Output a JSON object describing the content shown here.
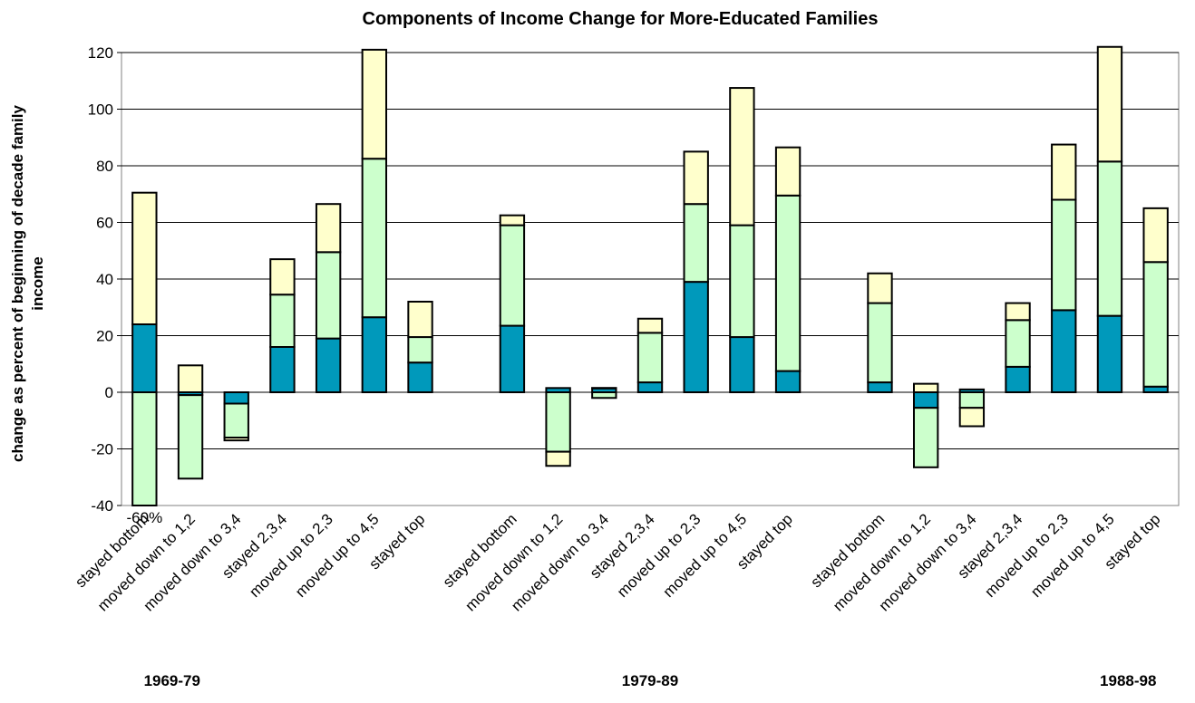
{
  "chart_data": {
    "type": "bar",
    "stacked": true,
    "title": "Components of Income Change for More-Educated Families",
    "ylabel": "change as percent of beginning of decade family income",
    "ylabel_lines": [
      "change as percent of beginning of decade family",
      "income"
    ],
    "xlabel": "",
    "ylim": [
      -40,
      120
    ],
    "yticks": [
      -40,
      -20,
      0,
      20,
      40,
      60,
      80,
      100,
      120
    ],
    "grid": true,
    "legend": "none",
    "colors": {
      "series1": "#0099BB",
      "series2": "#CCFFCC",
      "series3": "#FFFFCC",
      "edge": "#000000",
      "grid": "#000000",
      "axis": "#808080"
    },
    "groups": [
      {
        "label": "1969-79",
        "categories": [
          "stayed bottom",
          "moved down to 1,2",
          "moved down to 3,4",
          "stayed 2,3,4",
          "moved up to 2,3",
          "moved up to 4,5",
          "stayed top"
        ],
        "stacks": [
          [
            24,
            -60,
            46.5
          ],
          [
            -1,
            -29.5,
            9.5
          ],
          [
            -4,
            -12,
            -1
          ],
          [
            16,
            18.5,
            12.5
          ],
          [
            19,
            30.5,
            17
          ],
          [
            26.5,
            56,
            38.5
          ],
          [
            10.5,
            9,
            12.5
          ]
        ]
      },
      {
        "label": "1979-89",
        "categories": [
          "stayed bottom",
          "moved down to 1,2",
          "moved down to 3,4",
          "stayed 2,3,4",
          "moved up to 2,3",
          "moved up to 4,5",
          "stayed top"
        ],
        "stacks": [
          [
            23.5,
            35.5,
            3.5
          ],
          [
            1.5,
            -21,
            -5
          ],
          [
            1.5,
            -2,
            0
          ],
          [
            3.5,
            17.5,
            5
          ],
          [
            39,
            27.5,
            18.5
          ],
          [
            19.5,
            39.5,
            48.5
          ],
          [
            7.5,
            62,
            17
          ]
        ]
      },
      {
        "label": "1988-98",
        "categories": [
          "stayed bottom",
          "moved down to 1,2",
          "moved down to 3,4",
          "stayed 2,3,4",
          "moved up to 2,3",
          "moved up to 4,5",
          "stayed top"
        ],
        "stacks": [
          [
            3.5,
            28,
            10.5
          ],
          [
            -5.5,
            -21,
            3
          ],
          [
            1,
            -5.5,
            -6.5
          ],
          [
            9,
            16.5,
            6
          ],
          [
            29,
            39,
            19.5
          ],
          [
            27,
            54.5,
            40.5
          ],
          [
            2,
            44,
            19
          ]
        ]
      }
    ],
    "annotations": [
      {
        "text": "-60%",
        "near": "1969-79 stayed bottom, below axis"
      }
    ]
  }
}
